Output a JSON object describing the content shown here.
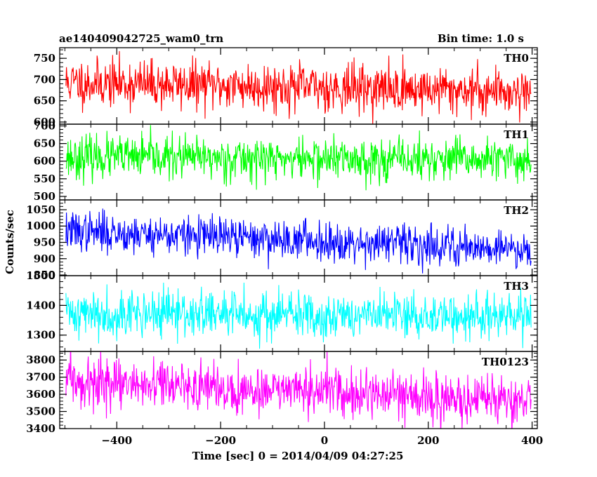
{
  "chart_data": {
    "type": "line",
    "title_left": "ae140409042725_wam0_trn",
    "title_right": "Bin time: 1.0 s",
    "xlabel": "Time [sec] 0 = 2014/04/09 04:27:25",
    "ylabel": "Counts/sec",
    "xlim": [
      -510,
      410
    ],
    "x_ticks": [
      -400,
      -200,
      0,
      200,
      400
    ],
    "x_start": -498,
    "x_end": 398,
    "x_step": 1,
    "panels": [
      {
        "name": "TH0",
        "color": "#ff0000",
        "ylim": [
          595,
          775
        ],
        "y_ticks": [
          600,
          650,
          700,
          750
        ],
        "mean_start": 693,
        "mean_end": 672,
        "noise": 28,
        "seed": 11
      },
      {
        "name": "TH1",
        "color": "#00ff00",
        "ylim": [
          490,
          705
        ],
        "y_ticks": [
          500,
          550,
          600,
          650,
          700
        ],
        "mean_start": 612,
        "mean_end": 602,
        "noise": 30,
        "seed": 23
      },
      {
        "name": "TH2",
        "color": "#0000ff",
        "ylim": [
          848,
          1080
        ],
        "y_ticks": [
          850,
          900,
          950,
          1000,
          1050
        ],
        "mean_start": 985,
        "mean_end": 930,
        "noise": 30,
        "seed": 37
      },
      {
        "name": "TH3",
        "color": "#00ffff",
        "ylim": [
          1245,
          1500
        ],
        "y_ticks": [
          1300,
          1400,
          1500
        ],
        "mean_start": 1375,
        "mean_end": 1360,
        "noise": 40,
        "seed": 41
      },
      {
        "name": "TH0123",
        "color": "#ff00ff",
        "ylim": [
          3400,
          3850
        ],
        "y_ticks": [
          3400,
          3500,
          3600,
          3700,
          3800
        ],
        "mean_start": 3670,
        "mean_end": 3560,
        "noise": 70,
        "seed": 59
      }
    ]
  }
}
